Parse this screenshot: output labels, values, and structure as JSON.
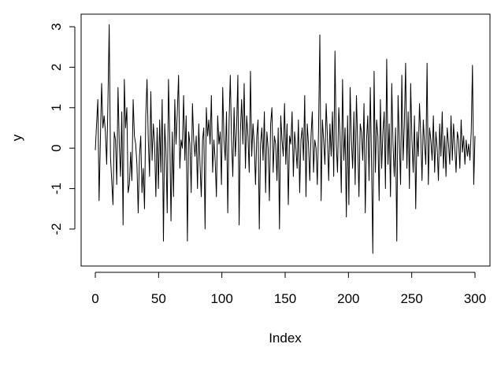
{
  "chart_data": {
    "type": "line",
    "xlabel": "Index",
    "ylabel": "y",
    "xlim": [
      0,
      300
    ],
    "ylim": [
      -2.6,
      3.1
    ],
    "xticks": [
      0,
      50,
      100,
      150,
      200,
      250,
      300
    ],
    "yticks": [
      -2,
      -1,
      0,
      1,
      2,
      3
    ],
    "xtick_labels": [
      "0",
      "50",
      "100",
      "150",
      "200",
      "250",
      "300"
    ],
    "ytick_labels": [
      "-2",
      "-1",
      "0",
      "1",
      "2",
      "3"
    ],
    "grid": false,
    "legend": "none",
    "line_color": "#000000",
    "series": [
      {
        "values": [
          -0.05,
          0.6,
          1.2,
          -1.3,
          0.2,
          1.6,
          0.5,
          0.8,
          0.4,
          -0.4,
          1.1,
          3.05,
          -0.2,
          -0.8,
          -1.4,
          0.4,
          0.2,
          -0.9,
          1.5,
          0.1,
          -0.7,
          0.9,
          -1.9,
          1.7,
          0.5,
          1.0,
          -1.1,
          -0.9,
          -0.1,
          -0.8,
          1.2,
          0.3,
          0.1,
          -0.4,
          -1.6,
          -0.2,
          0.3,
          -1.1,
          -0.5,
          -1.5,
          0.8,
          1.7,
          0.2,
          -0.7,
          1.4,
          -0.3,
          0.6,
          0.1,
          -1.2,
          0.5,
          -1.0,
          0.7,
          -0.6,
          1.2,
          -2.3,
          0.6,
          -0.1,
          -1.6,
          1.7,
          0.3,
          -1.8,
          0.4,
          -1.2,
          1.2,
          0.1,
          0.9,
          1.8,
          -0.5,
          0.2,
          0.0,
          1.3,
          -0.3,
          0.8,
          -2.3,
          0.4,
          0.1,
          -1.1,
          1.1,
          0.2,
          -0.2,
          0.3,
          -1.0,
          0.6,
          -0.4,
          -1.2,
          0.2,
          0.5,
          -2.0,
          1.0,
          0.3,
          0.7,
          0.1,
          1.3,
          -0.6,
          0.2,
          -0.3,
          -1.2,
          0.8,
          0.1,
          0.4,
          -0.9,
          1.5,
          0.2,
          -0.3,
          0.9,
          -1.6,
          0.6,
          1.8,
          0.2,
          -0.7,
          1.0,
          -0.2,
          0.5,
          1.8,
          -1.9,
          0.4,
          1.2,
          0.1,
          1.6,
          -0.5,
          0.8,
          0.3,
          -0.6,
          1.9,
          -0.2,
          0.6,
          0.1,
          -0.9,
          0.3,
          0.7,
          -2.0,
          0.1,
          0.5,
          -0.3,
          0.9,
          -1.1,
          0.4,
          0.0,
          -1.3,
          0.6,
          1.0,
          -0.6,
          0.3,
          0.1,
          -0.8,
          0.5,
          -2.0,
          0.8,
          0.2,
          -0.2,
          1.1,
          -0.4,
          0.6,
          -1.4,
          0.3,
          0.1,
          0.9,
          -0.7,
          0.4,
          0.0,
          -0.5,
          0.7,
          -1.1,
          0.2,
          0.5,
          -0.3,
          1.3,
          -1.2,
          0.6,
          0.1,
          -0.8,
          0.3,
          0.9,
          -0.6,
          0.2,
          0.0,
          -0.9,
          0.5,
          2.8,
          -1.3,
          0.7,
          0.2,
          -0.4,
          1.1,
          0.3,
          -0.8,
          0.6,
          -0.2,
          0.9,
          -0.7,
          2.4,
          0.1,
          -0.6,
          1.0,
          0.3,
          -1.1,
          1.7,
          -0.3,
          0.5,
          -1.7,
          0.8,
          -1.4,
          1.5,
          0.2,
          -0.5,
          0.9,
          -0.9,
          1.3,
          0.1,
          -1.2,
          0.6,
          0.4,
          -0.3,
          1.1,
          -1.6,
          0.2,
          0.8,
          -0.8,
          1.5,
          -0.4,
          -2.6,
          1.9,
          -0.6,
          0.7,
          0.3,
          -1.3,
          1.2,
          -0.5,
          0.4,
          0.9,
          -1.0,
          2.2,
          -0.4,
          0.6,
          -1.2,
          1.6,
          0.1,
          -0.7,
          0.5,
          -2.3,
          1.3,
          0.2,
          -0.9,
          1.8,
          -0.3,
          0.6,
          2.1,
          -0.5,
          0.9,
          -1.0,
          1.6,
          0.2,
          -0.6,
          0.8,
          -1.5,
          0.4,
          -0.2,
          1.1,
          0.3,
          -0.8,
          0.7,
          0.1,
          -0.4,
          2.1,
          -0.9,
          0.5,
          0.2,
          -0.3,
          0.8,
          -0.6,
          0.4,
          0.0,
          -0.8,
          0.6,
          -0.2,
          0.9,
          -0.5,
          0.3,
          -0.7,
          0.5,
          0.1,
          -0.4,
          0.8,
          -0.3,
          0.6,
          0.0,
          -0.6,
          0.4,
          0.2,
          -0.5,
          0.7,
          -0.1,
          0.3,
          -0.4,
          0.2,
          -0.2,
          0.1,
          -0.3,
          0.4,
          2.05,
          -0.9,
          0.3
        ]
      }
    ]
  }
}
